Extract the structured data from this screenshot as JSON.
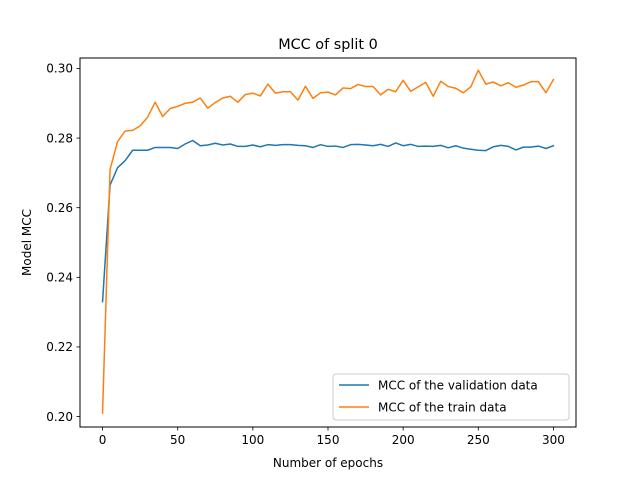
{
  "chart_data": {
    "type": "line",
    "title": "MCC of split 0",
    "xlabel": "Number of epochs",
    "ylabel": "Model MCC",
    "xlim": [
      -15,
      315
    ],
    "ylim": [
      0.197,
      0.303
    ],
    "xticks": [
      0,
      50,
      100,
      150,
      200,
      250,
      300
    ],
    "xtick_labels": [
      "0",
      "50",
      "100",
      "150",
      "200",
      "250",
      "300"
    ],
    "yticks": [
      0.2,
      0.22,
      0.24,
      0.26,
      0.28,
      0.3
    ],
    "ytick_labels": [
      "0.20",
      "0.22",
      "0.24",
      "0.26",
      "0.28",
      "0.30"
    ],
    "grid": false,
    "legend_position": "lower-right",
    "x": [
      0,
      5,
      10,
      15,
      20,
      25,
      30,
      35,
      40,
      45,
      50,
      55,
      60,
      65,
      70,
      75,
      80,
      85,
      90,
      95,
      100,
      105,
      110,
      115,
      120,
      125,
      130,
      135,
      140,
      145,
      150,
      155,
      160,
      165,
      170,
      175,
      180,
      185,
      190,
      195,
      200,
      205,
      210,
      215,
      220,
      225,
      230,
      235,
      240,
      245,
      250,
      255,
      260,
      265,
      270,
      275,
      280,
      285,
      290,
      295,
      300
    ],
    "series": [
      {
        "name": "MCC of the validation data",
        "color": "#1f77b4",
        "values": [
          0.233,
          0.2665,
          0.2715,
          0.2735,
          0.2765,
          0.2765,
          0.2765,
          0.2773,
          0.2773,
          0.2773,
          0.277,
          0.2783,
          0.2793,
          0.2778,
          0.278,
          0.2785,
          0.278,
          0.2783,
          0.2776,
          0.2776,
          0.278,
          0.2775,
          0.2781,
          0.2779,
          0.2781,
          0.2781,
          0.2779,
          0.2778,
          0.2773,
          0.2781,
          0.2776,
          0.2777,
          0.2773,
          0.2781,
          0.2782,
          0.278,
          0.2778,
          0.2782,
          0.2776,
          0.2786,
          0.2778,
          0.2782,
          0.2776,
          0.2777,
          0.2776,
          0.2779,
          0.2772,
          0.2778,
          0.2771,
          0.2768,
          0.2765,
          0.2764,
          0.2775,
          0.2779,
          0.2776,
          0.2766,
          0.2774,
          0.2774,
          0.2777,
          0.277,
          0.2778
        ]
      },
      {
        "name": "MCC of the train data",
        "color": "#ff7f0e",
        "values": [
          0.201,
          0.271,
          0.279,
          0.282,
          0.2822,
          0.2835,
          0.286,
          0.2903,
          0.2862,
          0.2885,
          0.2891,
          0.29,
          0.2903,
          0.2915,
          0.2886,
          0.2902,
          0.2915,
          0.292,
          0.2903,
          0.2925,
          0.2929,
          0.2921,
          0.2955,
          0.2929,
          0.2933,
          0.2933,
          0.2909,
          0.2949,
          0.2914,
          0.293,
          0.2932,
          0.2924,
          0.2944,
          0.2942,
          0.2954,
          0.2948,
          0.2948,
          0.2924,
          0.294,
          0.2933,
          0.2966,
          0.2934,
          0.2947,
          0.296,
          0.292,
          0.2963,
          0.2948,
          0.2943,
          0.293,
          0.2947,
          0.2995,
          0.2955,
          0.2961,
          0.295,
          0.2959,
          0.2946,
          0.2952,
          0.2962,
          0.2962,
          0.293,
          0.2968
        ]
      }
    ]
  }
}
